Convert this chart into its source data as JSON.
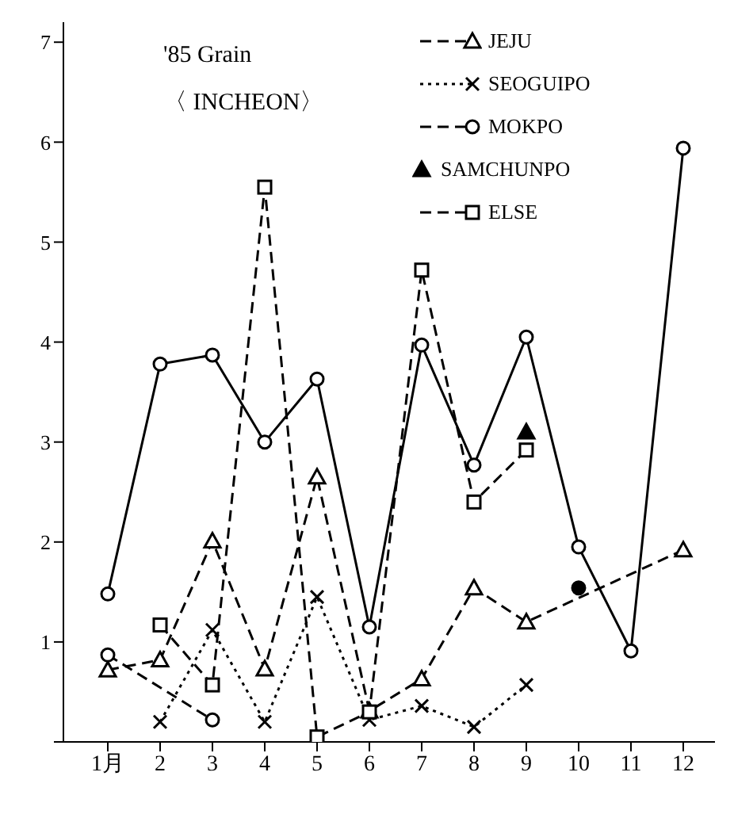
{
  "chart_data": {
    "type": "line",
    "title": "'85 Grain",
    "subtitle": "〈 INCHEON〉",
    "categories": [
      "1月",
      "2",
      "3",
      "4",
      "5",
      "6",
      "7",
      "8",
      "9",
      "10",
      "11",
      "12"
    ],
    "series": [
      {
        "color": "#000000",
        "marker": "circle",
        "line_style": "solid",
        "values": [
          1.48,
          3.78,
          3.87,
          3.0,
          3.63,
          1.15,
          3.97,
          2.77,
          4.05,
          1.95,
          0.91,
          5.94
        ]
      },
      {
        "name": "JEJU",
        "color": "#000000",
        "marker": "triangle",
        "line_style": "dashed",
        "values": [
          0.72,
          0.82,
          2.01,
          0.73,
          2.65,
          0.31,
          0.63,
          1.54,
          1.2,
          null,
          null,
          1.92
        ]
      },
      {
        "name": "SEOGUIPO",
        "color": "#000000",
        "marker": "cross",
        "line_style": "dotted",
        "values": [
          null,
          0.2,
          1.12,
          0.2,
          1.45,
          0.22,
          0.36,
          0.15,
          0.57,
          null,
          null,
          null
        ]
      },
      {
        "name": "MOKPO",
        "color": "#000000",
        "marker": "circle",
        "line_style": "dashed",
        "values": [
          0.87,
          null,
          0.22,
          null,
          null,
          null,
          null,
          null,
          null,
          null,
          null,
          null
        ]
      },
      {
        "type": "scatter",
        "color": "#000000",
        "marker": "circle",
        "values": [
          null,
          null,
          null,
          null,
          null,
          null,
          null,
          null,
          null,
          1.54,
          null,
          null
        ]
      },
      {
        "name": "SAMCHUNPO",
        "type": "scatter",
        "color": "#000000",
        "marker": "triangle",
        "values": [
          null,
          null,
          null,
          null,
          null,
          null,
          null,
          null,
          3.1,
          null,
          null,
          null
        ]
      },
      {
        "name": "ELSE",
        "color": "#000000",
        "marker": "square",
        "line_style": "dashed",
        "values": [
          null,
          1.17,
          0.57,
          5.55,
          0.05,
          0.3,
          4.72,
          2.4,
          2.92,
          null,
          null,
          null
        ]
      }
    ],
    "ylim": [
      0,
      7.2
    ],
    "yticks": [
      {
        "value": 0,
        "label": null
      },
      1,
      2,
      3,
      4,
      5,
      6,
      7
    ],
    "grid": false,
    "legend": "top right"
  }
}
